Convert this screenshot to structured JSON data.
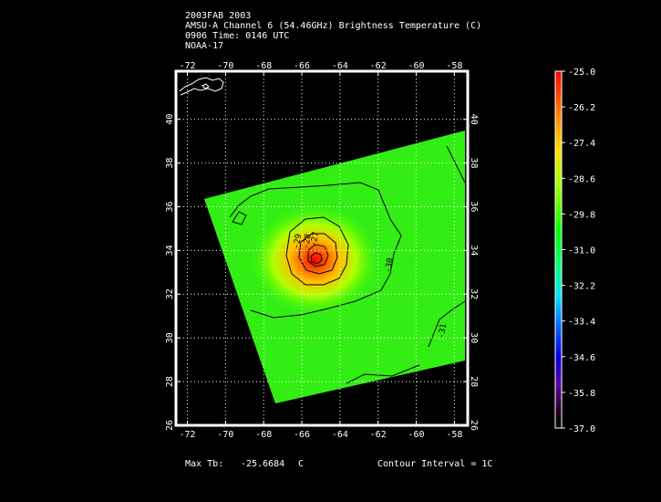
{
  "header": {
    "line1": "2003FAB 2003",
    "line2": "AMSU-A Channel 6 (54.46GHz) Brightness Temperature (C)",
    "line3": "0906 Time: 0146 UTC",
    "line4": "NOAA-17"
  },
  "footer": {
    "max_tb_label": "Max Tb:",
    "max_tb_value": "-25.6684",
    "max_tb_unit": "C",
    "contour_interval": "Contour Interval = 1C"
  },
  "map": {
    "lon_ticks": [
      "-72",
      "-70",
      "-68",
      "-66",
      "-64",
      "-62",
      "-60",
      "-58"
    ],
    "lon_values": [
      -72,
      -70,
      -68,
      -66,
      -64,
      -62,
      -60,
      -58
    ],
    "lat_ticks": [
      "40",
      "38",
      "36",
      "34",
      "32",
      "30",
      "28",
      "26"
    ],
    "lat_values": [
      40,
      38,
      36,
      34,
      32,
      30,
      28,
      26
    ],
    "lon_range": [
      -72.6,
      -57.3
    ],
    "lat_range": [
      26,
      42.2
    ],
    "grid": "dotted",
    "contour_labels": [
      {
        "text": "-29",
        "lon": -66.1,
        "lat": 34.4
      },
      {
        "text": "-28",
        "lon": -65.6,
        "lat": 34.4
      },
      {
        "text": "-27",
        "lon": -65.2,
        "lat": 34.5
      },
      {
        "text": "-30",
        "lon": -61.3,
        "lat": 33.3
      },
      {
        "text": "-31",
        "lon": -58.5,
        "lat": 30.3
      }
    ],
    "storm_center": {
      "lon": -65,
      "lat": 33.8
    }
  },
  "colorbar": {
    "labels": [
      "-25.0",
      "-26.2",
      "-27.4",
      "-28.6",
      "-29.8",
      "-31.0",
      "-32.2",
      "-33.4",
      "-34.6",
      "-35.8",
      "-37.0"
    ],
    "min": -37.0,
    "max": -25.0,
    "colors": [
      "#ff0000",
      "#ff8000",
      "#ffd000",
      "#c0ff00",
      "#20ff00",
      "#00ff60",
      "#00e0ff",
      "#0080ff",
      "#0000ff",
      "#8000c0",
      "#000000"
    ]
  }
}
